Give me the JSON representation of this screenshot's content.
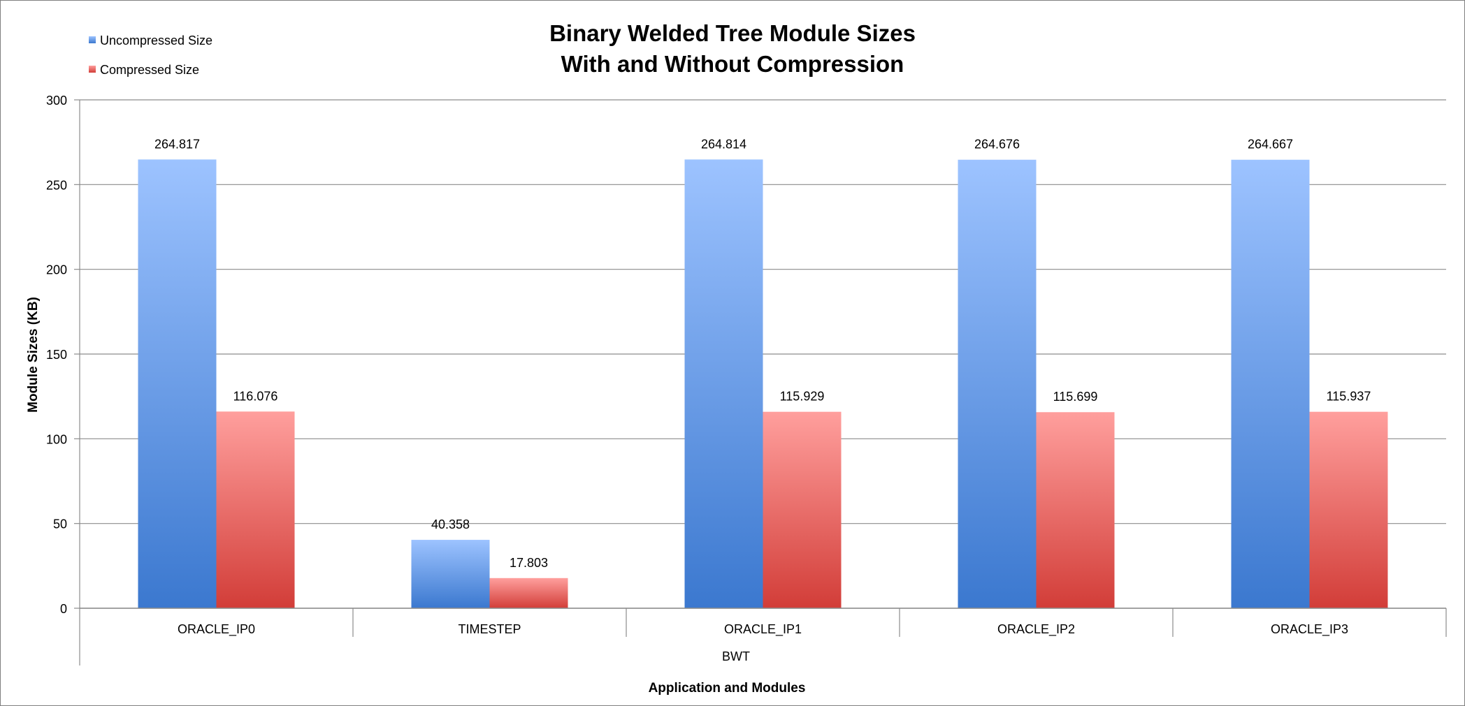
{
  "chart_data": {
    "type": "bar",
    "title_lines": [
      "Binary Welded Tree Module Sizes",
      "With and Without Compression"
    ],
    "xlabel": "Application and Modules",
    "ylabel": "Module Sizes (KB)",
    "group_label": "BWT",
    "categories": [
      "ORACLE_IP0",
      "TIMESTEP",
      "ORACLE_IP1",
      "ORACLE_IP2",
      "ORACLE_IP3"
    ],
    "series": [
      {
        "name": "Uncompressed Size",
        "values": [
          264.817,
          40.358,
          264.814,
          264.676,
          264.667
        ],
        "labels": [
          "264.817",
          "40.358",
          "264.814",
          "264.676",
          "264.667"
        ],
        "color_top": "#9dc3ff",
        "color_bottom": "#3b78cf"
      },
      {
        "name": "Compressed Size",
        "values": [
          116.076,
          17.803,
          115.929,
          115.699,
          115.937
        ],
        "labels": [
          "116.076",
          "17.803",
          "115.929",
          "115.699",
          "115.937"
        ],
        "color_top": "#ff9f9d",
        "color_bottom": "#d23d38"
      }
    ],
    "ylim": [
      0,
      300
    ],
    "yticks": [
      0,
      50,
      100,
      150,
      200,
      250,
      300
    ],
    "grid": true,
    "legend_position": "top-left"
  }
}
